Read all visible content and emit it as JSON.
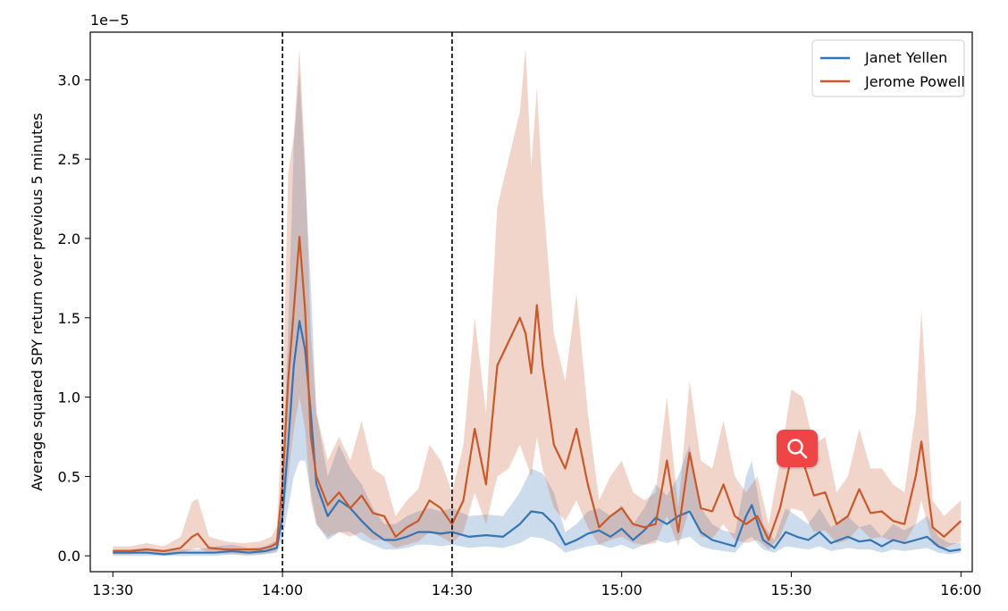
{
  "chart_data": {
    "type": "line",
    "xlabel": "",
    "ylabel": "Average squared SPY return over previous 5 minutes",
    "y_multiplier": "1e−5",
    "xlim": [
      "13:26",
      "16:02"
    ],
    "ylim": [
      -0.1,
      3.3
    ],
    "x_ticks": [
      "13:30",
      "14:00",
      "14:30",
      "15:00",
      "15:30",
      "16:00"
    ],
    "y_ticks": [
      "0.0",
      "0.5",
      "1.0",
      "1.5",
      "2.0",
      "2.5",
      "3.0"
    ],
    "grid": false,
    "legend_position": "top-right",
    "vertical_lines": [
      "14:00",
      "14:30"
    ],
    "series": [
      {
        "name": "Janet Yellen",
        "color": "#3574b5",
        "x": [
          "13:30",
          "13:33",
          "13:36",
          "13:39",
          "13:42",
          "13:45",
          "13:48",
          "13:51",
          "13:54",
          "13:57",
          "13:59",
          "14:00",
          "14:01",
          "14:02",
          "14:03",
          "14:04",
          "14:05",
          "14:06",
          "14:08",
          "14:10",
          "14:12",
          "14:14",
          "14:16",
          "14:18",
          "14:20",
          "14:22",
          "14:24",
          "14:26",
          "14:28",
          "14:30",
          "14:33",
          "14:36",
          "14:39",
          "14:42",
          "14:44",
          "14:46",
          "14:48",
          "14:50",
          "14:52",
          "14:54",
          "14:56",
          "14:58",
          "15:00",
          "15:02",
          "15:04",
          "15:06",
          "15:08",
          "15:10",
          "15:12",
          "15:14",
          "15:16",
          "15:18",
          "15:20",
          "15:22",
          "15:23",
          "15:25",
          "15:27",
          "15:29",
          "15:31",
          "15:33",
          "15:35",
          "15:37",
          "15:40",
          "15:42",
          "15:44",
          "15:46",
          "15:48",
          "15:50",
          "15:52",
          "15:54",
          "15:56",
          "15:58",
          "16:00"
        ],
        "mean": [
          0.02,
          0.02,
          0.02,
          0.01,
          0.02,
          0.02,
          0.02,
          0.03,
          0.02,
          0.03,
          0.05,
          0.25,
          0.7,
          1.2,
          1.48,
          1.3,
          0.9,
          0.45,
          0.25,
          0.35,
          0.3,
          0.22,
          0.15,
          0.1,
          0.1,
          0.12,
          0.15,
          0.15,
          0.14,
          0.15,
          0.12,
          0.13,
          0.12,
          0.2,
          0.28,
          0.27,
          0.2,
          0.07,
          0.1,
          0.14,
          0.16,
          0.12,
          0.17,
          0.1,
          0.16,
          0.24,
          0.2,
          0.25,
          0.28,
          0.15,
          0.1,
          0.08,
          0.06,
          0.25,
          0.32,
          0.1,
          0.05,
          0.15,
          0.12,
          0.1,
          0.15,
          0.08,
          0.12,
          0.09,
          0.1,
          0.06,
          0.1,
          0.08,
          0.1,
          0.12,
          0.06,
          0.03,
          0.04
        ],
        "lower": [
          0.0,
          0.0,
          0.0,
          0.0,
          0.0,
          0.0,
          0.0,
          0.01,
          0.0,
          0.01,
          0.02,
          0.1,
          0.3,
          0.5,
          0.6,
          0.6,
          0.4,
          0.2,
          0.1,
          0.15,
          0.15,
          0.1,
          0.07,
          0.04,
          0.04,
          0.05,
          0.07,
          0.07,
          0.06,
          0.07,
          0.05,
          0.06,
          0.05,
          0.08,
          0.12,
          0.11,
          0.08,
          0.02,
          0.04,
          0.06,
          0.07,
          0.05,
          0.07,
          0.04,
          0.07,
          0.1,
          0.08,
          0.1,
          0.12,
          0.06,
          0.04,
          0.03,
          0.02,
          0.1,
          0.12,
          0.04,
          0.02,
          0.06,
          0.05,
          0.04,
          0.06,
          0.03,
          0.05,
          0.04,
          0.04,
          0.02,
          0.04,
          0.03,
          0.04,
          0.05,
          0.02,
          0.01,
          0.02
        ],
        "upper": [
          0.04,
          0.04,
          0.05,
          0.03,
          0.04,
          0.04,
          0.06,
          0.07,
          0.05,
          0.06,
          0.1,
          0.5,
          1.4,
          2.6,
          3.05,
          2.4,
          1.7,
          0.9,
          0.5,
          0.7,
          0.55,
          0.45,
          0.3,
          0.2,
          0.2,
          0.25,
          0.28,
          0.3,
          0.28,
          0.3,
          0.25,
          0.26,
          0.25,
          0.4,
          0.55,
          0.52,
          0.4,
          0.15,
          0.2,
          0.28,
          0.3,
          0.25,
          0.32,
          0.2,
          0.3,
          0.45,
          0.38,
          0.5,
          0.7,
          0.3,
          0.2,
          0.16,
          0.14,
          0.5,
          0.6,
          0.2,
          0.1,
          0.3,
          0.25,
          0.2,
          0.3,
          0.18,
          0.25,
          0.18,
          0.2,
          0.12,
          0.2,
          0.16,
          0.2,
          0.25,
          0.12,
          0.08,
          0.08
        ]
      },
      {
        "name": "Jerome Powell",
        "color": "#c8592b",
        "x": [
          "13:30",
          "13:33",
          "13:36",
          "13:39",
          "13:42",
          "13:44",
          "13:45",
          "13:47",
          "13:50",
          "13:53",
          "13:56",
          "13:58",
          "13:59",
          "14:00",
          "14:01",
          "14:02",
          "14:03",
          "14:04",
          "14:05",
          "14:06",
          "14:08",
          "14:10",
          "14:12",
          "14:14",
          "14:16",
          "14:18",
          "14:20",
          "14:22",
          "14:24",
          "14:26",
          "14:28",
          "14:30",
          "14:32",
          "14:34",
          "14:36",
          "14:38",
          "14:40",
          "14:42",
          "14:43",
          "14:44",
          "14:45",
          "14:46",
          "14:48",
          "14:50",
          "14:52",
          "14:54",
          "14:56",
          "14:58",
          "15:00",
          "15:02",
          "15:04",
          "15:06",
          "15:08",
          "15:10",
          "15:12",
          "15:14",
          "15:16",
          "15:18",
          "15:20",
          "15:22",
          "15:24",
          "15:26",
          "15:28",
          "15:30",
          "15:32",
          "15:34",
          "15:36",
          "15:38",
          "15:40",
          "15:42",
          "15:44",
          "15:46",
          "15:48",
          "15:50",
          "15:52",
          "15:53",
          "15:55",
          "15:57",
          "16:00"
        ],
        "mean": [
          0.03,
          0.03,
          0.04,
          0.03,
          0.05,
          0.12,
          0.14,
          0.05,
          0.04,
          0.04,
          0.04,
          0.06,
          0.08,
          0.45,
          1.1,
          1.55,
          2.01,
          1.55,
          0.75,
          0.5,
          0.32,
          0.4,
          0.3,
          0.38,
          0.27,
          0.25,
          0.12,
          0.18,
          0.22,
          0.35,
          0.3,
          0.2,
          0.35,
          0.8,
          0.45,
          1.2,
          1.35,
          1.5,
          1.4,
          1.15,
          1.58,
          1.2,
          0.7,
          0.55,
          0.8,
          0.45,
          0.18,
          0.25,
          0.3,
          0.2,
          0.18,
          0.2,
          0.6,
          0.15,
          0.65,
          0.3,
          0.28,
          0.45,
          0.25,
          0.2,
          0.25,
          0.1,
          0.3,
          0.62,
          0.6,
          0.38,
          0.4,
          0.2,
          0.25,
          0.42,
          0.27,
          0.28,
          0.22,
          0.2,
          0.5,
          0.72,
          0.18,
          0.12,
          0.22
        ],
        "lower": [
          0.01,
          0.01,
          0.02,
          0.01,
          0.02,
          0.04,
          0.05,
          0.02,
          0.01,
          0.01,
          0.01,
          0.02,
          0.03,
          0.2,
          0.5,
          0.8,
          1.0,
          0.8,
          0.35,
          0.2,
          0.12,
          0.15,
          0.12,
          0.15,
          0.1,
          0.1,
          0.05,
          0.07,
          0.09,
          0.15,
          0.12,
          0.08,
          0.15,
          0.4,
          0.2,
          0.5,
          0.55,
          0.7,
          0.6,
          0.5,
          0.75,
          0.55,
          0.3,
          0.22,
          0.35,
          0.18,
          0.07,
          0.1,
          0.12,
          0.08,
          0.07,
          0.08,
          0.25,
          0.06,
          0.3,
          0.12,
          0.11,
          0.2,
          0.1,
          0.08,
          0.1,
          0.04,
          0.12,
          0.3,
          0.28,
          0.15,
          0.16,
          0.08,
          0.1,
          0.18,
          0.11,
          0.12,
          0.09,
          0.08,
          0.2,
          0.35,
          0.07,
          0.05,
          0.09
        ],
        "upper": [
          0.06,
          0.06,
          0.08,
          0.06,
          0.12,
          0.34,
          0.36,
          0.12,
          0.09,
          0.08,
          0.09,
          0.12,
          0.18,
          0.9,
          2.4,
          2.65,
          3.2,
          2.5,
          1.4,
          0.9,
          0.6,
          0.75,
          0.6,
          0.85,
          0.55,
          0.5,
          0.25,
          0.35,
          0.42,
          0.7,
          0.6,
          0.4,
          0.7,
          1.5,
          0.9,
          2.2,
          2.5,
          2.8,
          3.2,
          2.45,
          2.95,
          2.3,
          1.4,
          1.1,
          1.65,
          0.9,
          0.35,
          0.5,
          0.6,
          0.4,
          0.35,
          0.4,
          1.0,
          0.3,
          1.1,
          0.6,
          0.55,
          0.85,
          0.5,
          0.4,
          0.5,
          0.2,
          0.6,
          1.05,
          1.0,
          0.7,
          0.75,
          0.4,
          0.5,
          0.8,
          0.55,
          0.55,
          0.45,
          0.4,
          0.9,
          1.55,
          0.35,
          0.25,
          0.35
        ]
      }
    ]
  },
  "toolbar": {
    "zoom_icon": "magnifier-icon",
    "zoom_color": "#ee4646"
  }
}
